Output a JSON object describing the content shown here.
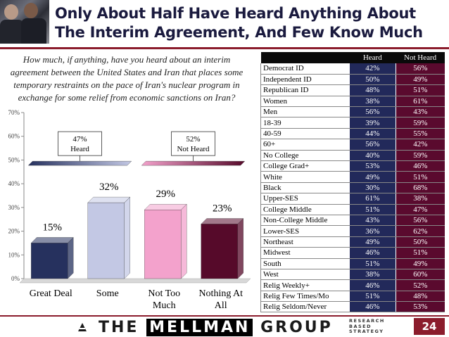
{
  "header": {
    "title_line1": "Only About Half Have Heard Anything About",
    "title_line2": "The Interim Agreement, And Few Know Much"
  },
  "question": "How much, if anything, have you heard about an interim agreement between the United States and Iran that places some temporary restraints on the pace of Iran's nuclear program in exchange for some relief from economic sanctions on Iran?",
  "chart_data": {
    "type": "bar",
    "categories": [
      "Great Deal",
      "Some",
      "Not Too Much",
      "Nothing At All"
    ],
    "category_lines": [
      [
        "Great Deal"
      ],
      [
        "Some"
      ],
      [
        "Not Too",
        "Much"
      ],
      [
        "Nothing At",
        "All"
      ]
    ],
    "values": [
      15,
      32,
      29,
      23
    ],
    "value_labels": [
      "15%",
      "32%",
      "29%",
      "23%"
    ],
    "bar_colors": [
      "#26315e",
      "#c3c8e4",
      "#f3a2cc",
      "#560a2a"
    ],
    "ylim": [
      0,
      70
    ],
    "yticks": [
      0,
      10,
      20,
      30,
      40,
      50,
      60,
      70
    ],
    "ytick_labels": [
      "0%",
      "10%",
      "20%",
      "30%",
      "40%",
      "50%",
      "60%",
      "70%"
    ],
    "grid": false,
    "groups": [
      {
        "label_line1": "47%",
        "label_line2": "Heard",
        "color_from": "#26315e",
        "color_to": "#c3c8e4",
        "categories": [
          "Great Deal",
          "Some"
        ]
      },
      {
        "label_line1": "52%",
        "label_line2": "Not Heard",
        "color_from": "#f3a2cc",
        "color_to": "#560a2a",
        "categories": [
          "Not Too Much",
          "Nothing At All"
        ]
      }
    ]
  },
  "table": {
    "headers": [
      "",
      "Heard",
      "Not Heard"
    ],
    "rows": [
      {
        "label": "Democrat ID",
        "heard": "42%",
        "not_heard": "56%"
      },
      {
        "label": "Independent ID",
        "heard": "50%",
        "not_heard": "49%"
      },
      {
        "label": "Republican ID",
        "heard": "48%",
        "not_heard": "51%"
      },
      {
        "label": "Women",
        "heard": "38%",
        "not_heard": "61%"
      },
      {
        "label": "Men",
        "heard": "56%",
        "not_heard": "43%"
      },
      {
        "label": "18-39",
        "heard": "39%",
        "not_heard": "59%"
      },
      {
        "label": "40-59",
        "heard": "44%",
        "not_heard": "55%"
      },
      {
        "label": "60+",
        "heard": "56%",
        "not_heard": "42%"
      },
      {
        "label": "No College",
        "heard": "40%",
        "not_heard": "59%"
      },
      {
        "label": "College Grad+",
        "heard": "53%",
        "not_heard": "46%"
      },
      {
        "label": "White",
        "heard": "49%",
        "not_heard": "51%"
      },
      {
        "label": "Black",
        "heard": "30%",
        "not_heard": "68%"
      },
      {
        "label": "Upper-SES",
        "heard": "61%",
        "not_heard": "38%"
      },
      {
        "label": "College Middle",
        "heard": "51%",
        "not_heard": "47%"
      },
      {
        "label": "Non-College Middle",
        "heard": "43%",
        "not_heard": "56%"
      },
      {
        "label": "Lower-SES",
        "heard": "36%",
        "not_heard": "62%"
      },
      {
        "label": "Northeast",
        "heard": "49%",
        "not_heard": "50%"
      },
      {
        "label": "Midwest",
        "heard": "46%",
        "not_heard": "51%"
      },
      {
        "label": "South",
        "heard": "51%",
        "not_heard": "49%"
      },
      {
        "label": "West",
        "heard": "38%",
        "not_heard": "60%"
      },
      {
        "label": "Relig Weekly+",
        "heard": "46%",
        "not_heard": "52%"
      },
      {
        "label": "Relig Few Times/Mo",
        "heard": "51%",
        "not_heard": "48%"
      },
      {
        "label": "Relig Seldom/Never",
        "heard": "46%",
        "not_heard": "53%"
      }
    ]
  },
  "footer": {
    "logo_the": "THE",
    "logo_mellman": "MELLMAN",
    "logo_group": "GROUP",
    "tagline_1": "RESEARCH",
    "tagline_2": "BASED",
    "tagline_3": "STRATEGY",
    "page_number": "24"
  }
}
